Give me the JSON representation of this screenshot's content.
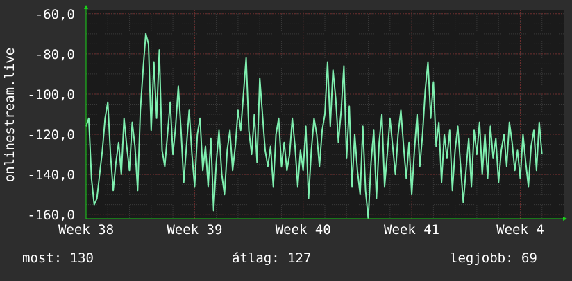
{
  "colors": {
    "background": "#2d2d2d",
    "plot_background": "#1a1a1a",
    "grid_minor": "#3a3a3a",
    "grid_major": "#6e2d2d",
    "line": "#7ff0b0",
    "axis_arrow": "#19d119",
    "text": "#ffffff"
  },
  "chart_data": {
    "type": "line",
    "ylabel": "onlinestream.live",
    "ylim": [
      -162,
      -58
    ],
    "yticks": [
      {
        "value": -60,
        "label": "-60,0"
      },
      {
        "value": -80,
        "label": "-80,0"
      },
      {
        "value": -100,
        "label": "-100,0"
      },
      {
        "value": -120,
        "label": "-120,0"
      },
      {
        "value": -140,
        "label": "-140,0"
      },
      {
        "value": -160,
        "label": "-160,0"
      }
    ],
    "xlim": [
      0,
      44
    ],
    "xticks": [
      {
        "value": 0,
        "label": "Week 38"
      },
      {
        "value": 10,
        "label": "Week 39"
      },
      {
        "value": 20,
        "label": "Week 40"
      },
      {
        "value": 30,
        "label": "Week 41"
      },
      {
        "value": 40,
        "label": "Week 4"
      }
    ],
    "grid": true,
    "series": [
      {
        "values": [
          [
            0.0,
            -116
          ],
          [
            0.25,
            -112
          ],
          [
            0.5,
            -142
          ],
          [
            0.75,
            -155
          ],
          [
            1.0,
            -152
          ],
          [
            1.25,
            -140
          ],
          [
            1.5,
            -128
          ],
          [
            1.75,
            -112
          ],
          [
            2.0,
            -104
          ],
          [
            2.25,
            -130
          ],
          [
            2.5,
            -148
          ],
          [
            2.75,
            -134
          ],
          [
            3.0,
            -124
          ],
          [
            3.25,
            -140
          ],
          [
            3.5,
            -112
          ],
          [
            3.75,
            -126
          ],
          [
            4.0,
            -138
          ],
          [
            4.25,
            -114
          ],
          [
            4.5,
            -126
          ],
          [
            4.75,
            -148
          ],
          [
            5.0,
            -108
          ],
          [
            5.25,
            -88
          ],
          [
            5.5,
            -70
          ],
          [
            5.75,
            -75
          ],
          [
            6.0,
            -118
          ],
          [
            6.25,
            -84
          ],
          [
            6.5,
            -112
          ],
          [
            6.75,
            -78
          ],
          [
            7.0,
            -128
          ],
          [
            7.25,
            -136
          ],
          [
            7.5,
            -120
          ],
          [
            7.75,
            -104
          ],
          [
            8.0,
            -130
          ],
          [
            8.25,
            -116
          ],
          [
            8.5,
            -96
          ],
          [
            8.75,
            -118
          ],
          [
            9.0,
            -144
          ],
          [
            9.25,
            -126
          ],
          [
            9.5,
            -108
          ],
          [
            9.75,
            -130
          ],
          [
            10.0,
            -146
          ],
          [
            10.25,
            -120
          ],
          [
            10.5,
            -112
          ],
          [
            10.75,
            -138
          ],
          [
            11.0,
            -126
          ],
          [
            11.25,
            -146
          ],
          [
            11.5,
            -122
          ],
          [
            11.75,
            -158
          ],
          [
            12.0,
            -134
          ],
          [
            12.25,
            -118
          ],
          [
            12.5,
            -140
          ],
          [
            12.75,
            -150
          ],
          [
            13.0,
            -128
          ],
          [
            13.25,
            -118
          ],
          [
            13.5,
            -138
          ],
          [
            13.75,
            -126
          ],
          [
            14.0,
            -108
          ],
          [
            14.25,
            -118
          ],
          [
            14.5,
            -100
          ],
          [
            14.75,
            -82
          ],
          [
            15.0,
            -118
          ],
          [
            15.25,
            -130
          ],
          [
            15.5,
            -110
          ],
          [
            15.75,
            -134
          ],
          [
            16.0,
            -92
          ],
          [
            16.25,
            -110
          ],
          [
            16.5,
            -128
          ],
          [
            16.75,
            -136
          ],
          [
            17.0,
            -126
          ],
          [
            17.25,
            -146
          ],
          [
            17.5,
            -120
          ],
          [
            17.75,
            -112
          ],
          [
            18.0,
            -136
          ],
          [
            18.25,
            -124
          ],
          [
            18.5,
            -138
          ],
          [
            18.75,
            -130
          ],
          [
            19.0,
            -112
          ],
          [
            19.25,
            -126
          ],
          [
            19.5,
            -146
          ],
          [
            19.75,
            -128
          ],
          [
            20.0,
            -138
          ],
          [
            20.25,
            -116
          ],
          [
            20.5,
            -152
          ],
          [
            20.75,
            -128
          ],
          [
            21.0,
            -112
          ],
          [
            21.25,
            -120
          ],
          [
            21.5,
            -136
          ],
          [
            21.75,
            -118
          ],
          [
            22.0,
            -110
          ],
          [
            22.25,
            -84
          ],
          [
            22.5,
            -116
          ],
          [
            22.75,
            -88
          ],
          [
            23.0,
            -102
          ],
          [
            23.25,
            -124
          ],
          [
            23.5,
            -108
          ],
          [
            23.75,
            -86
          ],
          [
            24.0,
            -132
          ],
          [
            24.25,
            -106
          ],
          [
            24.5,
            -146
          ],
          [
            24.75,
            -120
          ],
          [
            25.0,
            -138
          ],
          [
            25.25,
            -150
          ],
          [
            25.5,
            -116
          ],
          [
            25.75,
            -148
          ],
          [
            26.0,
            -162
          ],
          [
            26.25,
            -134
          ],
          [
            26.5,
            -118
          ],
          [
            26.75,
            -152
          ],
          [
            27.0,
            -124
          ],
          [
            27.25,
            -110
          ],
          [
            27.5,
            -146
          ],
          [
            27.75,
            -130
          ],
          [
            28.0,
            -112
          ],
          [
            28.25,
            -126
          ],
          [
            28.5,
            -140
          ],
          [
            28.75,
            -120
          ],
          [
            29.0,
            -108
          ],
          [
            29.25,
            -126
          ],
          [
            29.5,
            -142
          ],
          [
            29.75,
            -124
          ],
          [
            30.0,
            -150
          ],
          [
            30.25,
            -128
          ],
          [
            30.5,
            -110
          ],
          [
            30.75,
            -136
          ],
          [
            31.0,
            -120
          ],
          [
            31.25,
            -98
          ],
          [
            31.5,
            -84
          ],
          [
            31.75,
            -112
          ],
          [
            32.0,
            -94
          ],
          [
            32.25,
            -126
          ],
          [
            32.5,
            -114
          ],
          [
            32.75,
            -144
          ],
          [
            33.0,
            -120
          ],
          [
            33.25,
            -132
          ],
          [
            33.5,
            -118
          ],
          [
            33.75,
            -148
          ],
          [
            34.0,
            -128
          ],
          [
            34.25,
            -116
          ],
          [
            34.5,
            -136
          ],
          [
            34.75,
            -154
          ],
          [
            35.0,
            -138
          ],
          [
            35.25,
            -122
          ],
          [
            35.5,
            -146
          ],
          [
            35.75,
            -118
          ],
          [
            36.0,
            -130
          ],
          [
            36.25,
            -114
          ],
          [
            36.5,
            -140
          ],
          [
            36.75,
            -120
          ],
          [
            37.0,
            -142
          ],
          [
            37.25,
            -116
          ],
          [
            37.5,
            -132
          ],
          [
            37.75,
            -122
          ],
          [
            38.0,
            -144
          ],
          [
            38.25,
            -128
          ],
          [
            38.5,
            -120
          ],
          [
            38.75,
            -136
          ],
          [
            39.0,
            -114
          ],
          [
            39.25,
            -124
          ],
          [
            39.5,
            -138
          ],
          [
            39.75,
            -128
          ],
          [
            40.0,
            -142
          ],
          [
            40.25,
            -120
          ],
          [
            40.5,
            -134
          ],
          [
            40.75,
            -146
          ],
          [
            41.0,
            -126
          ],
          [
            41.25,
            -118
          ],
          [
            41.5,
            -138
          ],
          [
            41.75,
            -114
          ],
          [
            42.0,
            -130
          ]
        ]
      }
    ]
  },
  "stats": {
    "current_label": "most:",
    "current_value": "130",
    "average_label": "átlag:",
    "average_value": "127",
    "best_label": "legjobb:",
    "best_value": "69"
  }
}
